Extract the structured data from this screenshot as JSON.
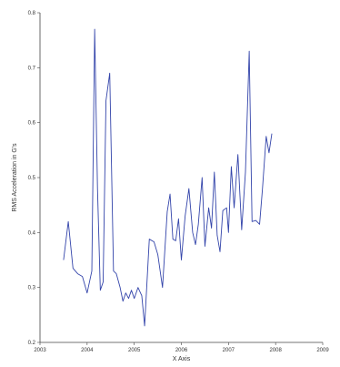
{
  "chart_data": {
    "type": "line",
    "title": "",
    "xlabel": "X Axis",
    "ylabel": "RMS Acceleration in G's",
    "xlim": [
      2003,
      2009
    ],
    "ylim": [
      0.2,
      0.8
    ],
    "x_ticks": [
      2003,
      2004,
      2005,
      2006,
      2007,
      2008,
      2009
    ],
    "y_ticks": [
      0.2,
      0.3,
      0.4,
      0.5,
      0.6,
      0.7,
      0.8
    ],
    "x_tick_labels": [
      "2003",
      "2004",
      "2005",
      "2006",
      "2007",
      "2008",
      "2009"
    ],
    "y_tick_labels": [
      "0.2",
      "0.3",
      "0.4",
      "0.5",
      "0.6",
      "0.7",
      "0.8"
    ],
    "grid": false,
    "colors": {
      "series": "#3344aa",
      "axis": "#444444"
    },
    "series": [
      {
        "points": [
          [
            2003.5,
            0.35
          ],
          [
            2003.6,
            0.42
          ],
          [
            2003.7,
            0.335
          ],
          [
            2003.8,
            0.325
          ],
          [
            2003.9,
            0.32
          ],
          [
            2004.0,
            0.29
          ],
          [
            2004.1,
            0.33
          ],
          [
            2004.16,
            0.77
          ],
          [
            2004.22,
            0.48
          ],
          [
            2004.28,
            0.295
          ],
          [
            2004.34,
            0.31
          ],
          [
            2004.4,
            0.64
          ],
          [
            2004.48,
            0.69
          ],
          [
            2004.56,
            0.33
          ],
          [
            2004.62,
            0.325
          ],
          [
            2004.7,
            0.3
          ],
          [
            2004.76,
            0.275
          ],
          [
            2004.82,
            0.29
          ],
          [
            2004.88,
            0.28
          ],
          [
            2004.94,
            0.295
          ],
          [
            2005.0,
            0.28
          ],
          [
            2005.08,
            0.3
          ],
          [
            2005.16,
            0.285
          ],
          [
            2005.22,
            0.23
          ],
          [
            2005.32,
            0.388
          ],
          [
            2005.42,
            0.383
          ],
          [
            2005.5,
            0.36
          ],
          [
            2005.6,
            0.3
          ],
          [
            2005.7,
            0.438
          ],
          [
            2005.76,
            0.47
          ],
          [
            2005.82,
            0.388
          ],
          [
            2005.88,
            0.385
          ],
          [
            2005.94,
            0.425
          ],
          [
            2006.0,
            0.35
          ],
          [
            2006.08,
            0.43
          ],
          [
            2006.16,
            0.48
          ],
          [
            2006.24,
            0.4
          ],
          [
            2006.3,
            0.378
          ],
          [
            2006.36,
            0.415
          ],
          [
            2006.44,
            0.5
          ],
          [
            2006.5,
            0.375
          ],
          [
            2006.58,
            0.445
          ],
          [
            2006.64,
            0.408
          ],
          [
            2006.7,
            0.51
          ],
          [
            2006.76,
            0.395
          ],
          [
            2006.82,
            0.365
          ],
          [
            2006.88,
            0.44
          ],
          [
            2006.96,
            0.445
          ],
          [
            2007.0,
            0.4
          ],
          [
            2007.06,
            0.52
          ],
          [
            2007.12,
            0.445
          ],
          [
            2007.2,
            0.542
          ],
          [
            2007.28,
            0.405
          ],
          [
            2007.36,
            0.51
          ],
          [
            2007.44,
            0.73
          ],
          [
            2007.5,
            0.42
          ],
          [
            2007.58,
            0.422
          ],
          [
            2007.66,
            0.415
          ],
          [
            2007.72,
            0.478
          ],
          [
            2007.8,
            0.575
          ],
          [
            2007.86,
            0.545
          ],
          [
            2007.92,
            0.58
          ]
        ]
      }
    ]
  }
}
